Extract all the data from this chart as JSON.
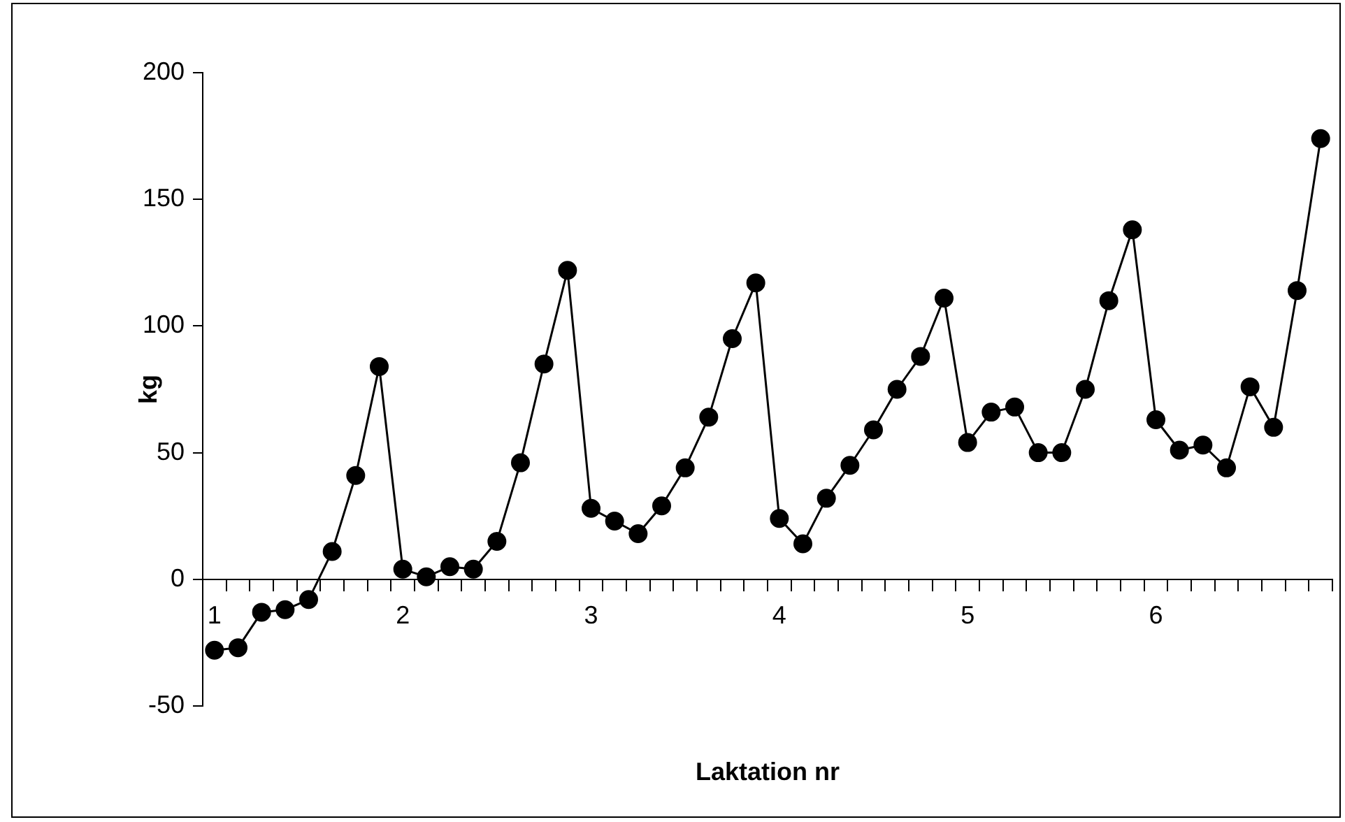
{
  "chart_data": {
    "type": "line",
    "xlabel": "Laktation nr",
    "ylabel": "kg",
    "categories": [
      "1",
      null,
      null,
      null,
      null,
      null,
      null,
      null,
      "2",
      null,
      null,
      null,
      null,
      null,
      null,
      null,
      "3",
      null,
      null,
      null,
      null,
      null,
      null,
      null,
      "4",
      null,
      null,
      null,
      null,
      null,
      null,
      null,
      "5",
      null,
      null,
      null,
      null,
      null,
      null,
      null,
      "6",
      null,
      null,
      null,
      null,
      null,
      null,
      null
    ],
    "series": [
      {
        "color": "#000000",
        "values": [
          -28,
          -27,
          -13,
          -12,
          -8,
          11,
          41,
          84,
          4,
          1,
          5,
          4,
          15,
          46,
          85,
          122,
          28,
          23,
          18,
          29,
          44,
          64,
          95,
          117,
          24,
          14,
          32,
          45,
          59,
          75,
          88,
          111,
          54,
          66,
          68,
          50,
          50,
          75,
          110,
          138,
          63,
          51,
          53,
          44,
          76,
          60,
          114,
          174
        ]
      }
    ],
    "ylim": [
      -50,
      200
    ],
    "yticks": [
      -50,
      0,
      50,
      100,
      150,
      200
    ],
    "grid": false,
    "legend": false,
    "marker": "circle",
    "line_style": "solid"
  }
}
